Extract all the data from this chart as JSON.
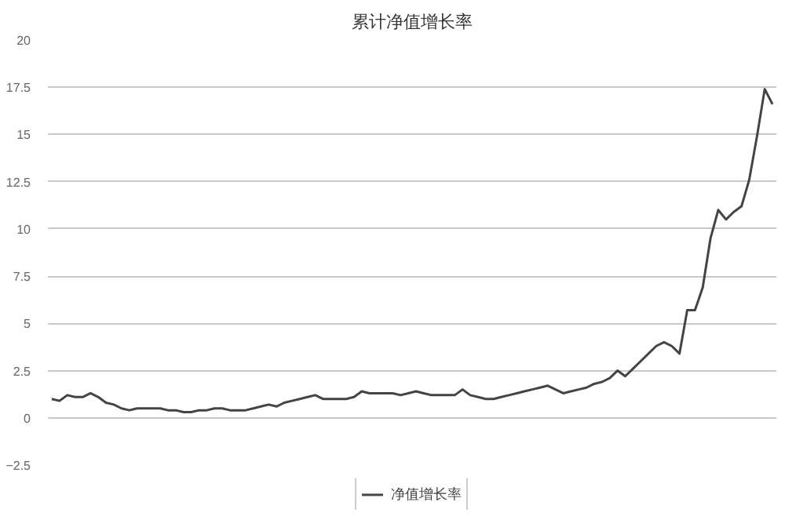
{
  "chart_data": {
    "type": "line",
    "title": "累计净值增长率",
    "categories": [
      null,
      null,
      null,
      null,
      null,
      null,
      null,
      null,
      null,
      null,
      null,
      null,
      null,
      null,
      null,
      null,
      null,
      null,
      null,
      null,
      null,
      null,
      null,
      null,
      null,
      null,
      null,
      null,
      null,
      null,
      null,
      null,
      null,
      null,
      null,
      null,
      null,
      null,
      null,
      null,
      null,
      null,
      null,
      null,
      null,
      null,
      null,
      null,
      null,
      null,
      null,
      null,
      null,
      null,
      null,
      null,
      null,
      null,
      null,
      null,
      null,
      null,
      null,
      null,
      null,
      null,
      null,
      null,
      null,
      null,
      null,
      null,
      null,
      null,
      null,
      null,
      null,
      null,
      null,
      null,
      null,
      null,
      null,
      null,
      null,
      null,
      null,
      null,
      null,
      null,
      null,
      null,
      null,
      null
    ],
    "series": [
      {
        "name": "净值增长率",
        "color": "#444444",
        "values": [
          1.0,
          0.9,
          1.2,
          1.1,
          1.1,
          1.3,
          1.1,
          0.8,
          0.7,
          0.5,
          0.4,
          0.5,
          0.5,
          0.5,
          0.5,
          0.4,
          0.4,
          0.3,
          0.3,
          0.4,
          0.4,
          0.5,
          0.5,
          0.4,
          0.4,
          0.4,
          0.5,
          0.6,
          0.7,
          0.6,
          0.8,
          0.9,
          1.0,
          1.1,
          1.2,
          1.0,
          1.0,
          1.0,
          1.0,
          1.1,
          1.4,
          1.3,
          1.3,
          1.3,
          1.3,
          1.2,
          1.3,
          1.4,
          1.3,
          1.2,
          1.2,
          1.2,
          1.2,
          1.5,
          1.2,
          1.1,
          1.0,
          1.0,
          1.1,
          1.2,
          1.3,
          1.4,
          1.5,
          1.6,
          1.7,
          1.5,
          1.3,
          1.4,
          1.5,
          1.6,
          1.8,
          1.9,
          2.1,
          2.5,
          2.2,
          2.6,
          3.0,
          3.4,
          3.8,
          4.0,
          3.8,
          3.4,
          5.7,
          5.7,
          6.9,
          9.5,
          11.0,
          10.5,
          10.9,
          11.2,
          12.6,
          14.9,
          17.4,
          16.6
        ]
      }
    ],
    "ylim": [
      -2.5,
      20
    ],
    "yticks": [
      -2.5,
      0,
      2.5,
      5,
      7.5,
      10,
      12.5,
      15,
      17.5,
      20
    ],
    "grid": "y",
    "legend": "bottom",
    "marker": "none",
    "line_style": "solid",
    "tick_labels": "y"
  }
}
